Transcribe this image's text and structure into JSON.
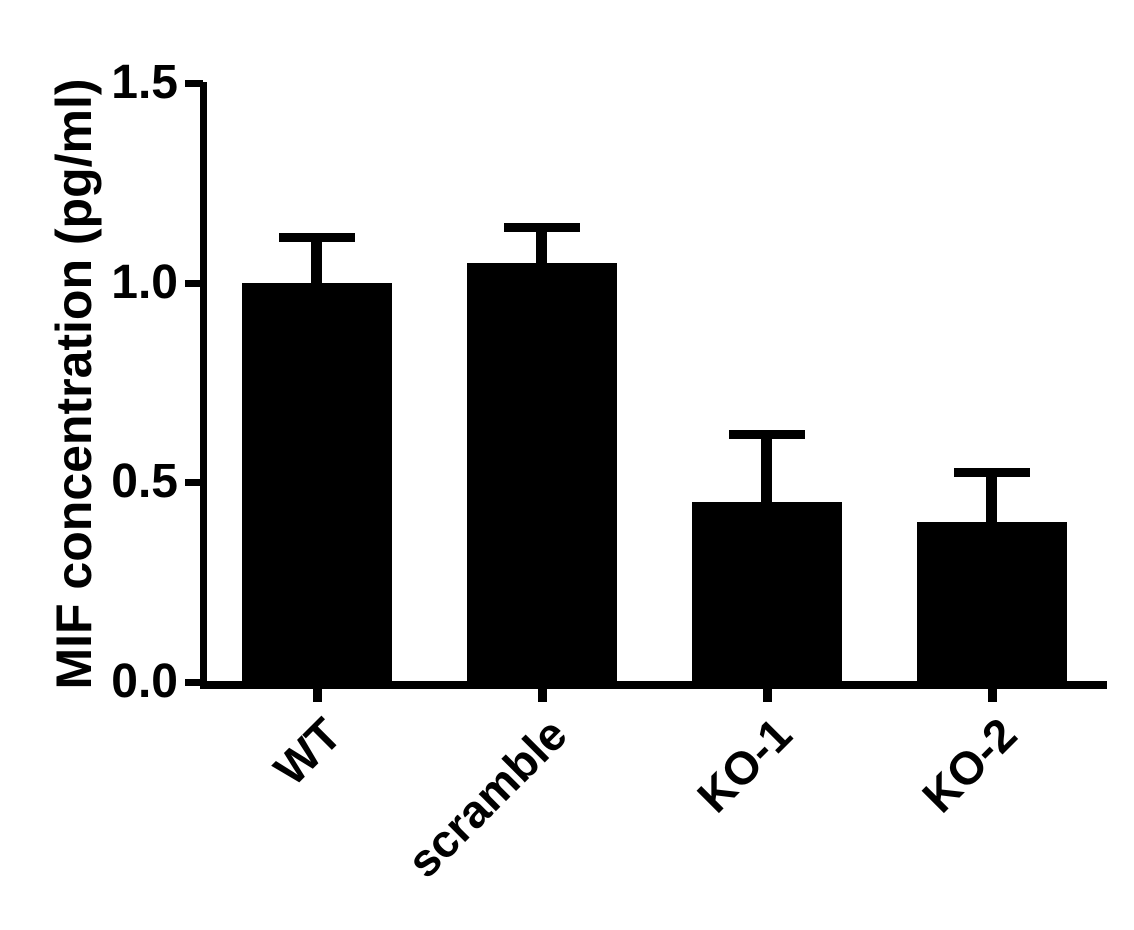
{
  "chart_data": {
    "type": "bar",
    "title": "",
    "xlabel": "",
    "ylabel": "MIF concentration (pg/ml)",
    "categories": [
      "WT",
      "scramble",
      "KO-1",
      "KO-2"
    ],
    "values": [
      1.0,
      1.05,
      0.45,
      0.4
    ],
    "errors_upper": [
      0.125,
      0.1,
      0.18,
      0.135
    ],
    "error_bar_style": "upper-only-with-cap",
    "ylim": [
      0,
      1.5
    ],
    "yticks": [
      0.0,
      0.5,
      1.0,
      1.5
    ],
    "ytick_labels": [
      "0.0",
      "0.5",
      "1.0",
      "1.5"
    ],
    "grid": false,
    "legend": false,
    "bar_color": "#000000",
    "axis_color": "#000000",
    "background_color": "#ffffff"
  }
}
